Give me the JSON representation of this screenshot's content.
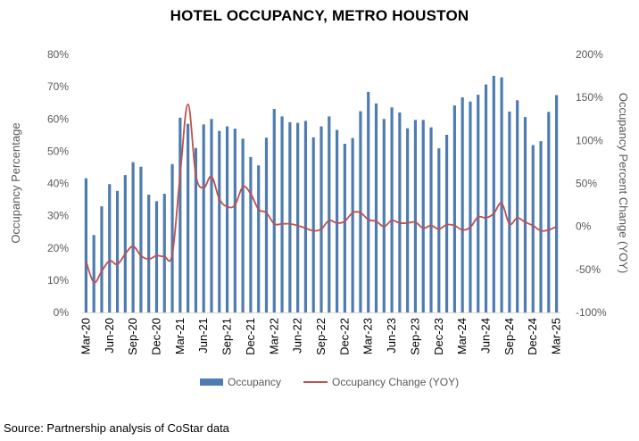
{
  "title": "HOTEL OCCUPANCY, METRO HOUSTON",
  "source": "Source: Partnership analysis of CoStar data",
  "colors": {
    "bar": "#4F7CB0",
    "line": "#C0504D",
    "grid": "#d9d9d9"
  },
  "chart_data": {
    "type": "bar+line",
    "title": "HOTEL OCCUPANCY, METRO HOUSTON",
    "ylabel": "Occupancy Percentage",
    "y2label": "Occupancy  Percent Change (YOY)",
    "ylim": [
      0,
      80
    ],
    "y2lim": [
      -100,
      200
    ],
    "yticks": [
      "0%",
      "10%",
      "20%",
      "30%",
      "40%",
      "50%",
      "60%",
      "70%",
      "80%"
    ],
    "y2ticks": [
      "-100%",
      "-50%",
      "0%",
      "50%",
      "100%",
      "150%",
      "200%"
    ],
    "xtick_labels": [
      "Mar-20",
      "Jun-20",
      "Sep-20",
      "Dec-20",
      "Mar-21",
      "Jun-21",
      "Sep-21",
      "Dec-21",
      "Mar-22",
      "Jun-22",
      "Sep-22",
      "Dec-22",
      "Mar-23",
      "Jun-23",
      "Sep-23",
      "Dec-23",
      "Mar-24",
      "Jun-24",
      "Sep-24",
      "Dec-24",
      "Mar-25"
    ],
    "legend": [
      "Occupancy",
      "Occupancy Change (YOY)"
    ],
    "legend_position": "bottom",
    "grid": false,
    "x": [
      "Mar-20",
      "Apr-20",
      "May-20",
      "Jun-20",
      "Jul-20",
      "Aug-20",
      "Sep-20",
      "Oct-20",
      "Nov-20",
      "Dec-20",
      "Jan-21",
      "Feb-21",
      "Mar-21",
      "Apr-21",
      "May-21",
      "Jun-21",
      "Jul-21",
      "Aug-21",
      "Sep-21",
      "Oct-21",
      "Nov-21",
      "Dec-21",
      "Jan-22",
      "Feb-22",
      "Mar-22",
      "Apr-22",
      "May-22",
      "Jun-22",
      "Jul-22",
      "Aug-22",
      "Sep-22",
      "Oct-22",
      "Nov-22",
      "Dec-22",
      "Jan-23",
      "Feb-23",
      "Mar-23",
      "Apr-23",
      "May-23",
      "Jun-23",
      "Jul-23",
      "Aug-23",
      "Sep-23",
      "Oct-23",
      "Nov-23",
      "Dec-23",
      "Jan-24",
      "Feb-24",
      "Mar-24",
      "Apr-24",
      "May-24",
      "Jun-24",
      "Jul-24",
      "Aug-24",
      "Sep-24",
      "Oct-24",
      "Nov-24",
      "Dec-24",
      "Jan-25",
      "Feb-25",
      "Mar-25"
    ],
    "series": [
      {
        "name": "Occupancy",
        "type": "bar",
        "axis": "left",
        "values": [
          41.6,
          24.0,
          32.9,
          39.8,
          37.7,
          42.6,
          46.6,
          45.2,
          36.5,
          34.5,
          36.8,
          46.0,
          60.4,
          58.5,
          51.0,
          58.3,
          60.0,
          56.3,
          57.7,
          57.0,
          53.9,
          48.2,
          45.6,
          54.2,
          63.1,
          60.8,
          59.0,
          58.8,
          59.4,
          54.3,
          57.7,
          60.8,
          56.6,
          52.3,
          54.1,
          62.4,
          68.4,
          64.8,
          60.0,
          63.6,
          62.0,
          57.1,
          59.7,
          59.7,
          57.4,
          50.9,
          55.1,
          64.2,
          66.7,
          65.4,
          67.5,
          70.7,
          73.4,
          72.9,
          62.3,
          65.8,
          60.6,
          51.9,
          53.1,
          62.2,
          67.4
        ]
      },
      {
        "name": "Occupancy Change (YOY)",
        "type": "line",
        "axis": "right",
        "values": [
          -40,
          -65,
          -52,
          -40,
          -44,
          -32,
          -23,
          -34,
          -38,
          -34,
          -35,
          -32,
          60,
          142,
          60,
          45,
          58,
          32,
          23,
          25,
          46,
          38,
          20,
          16,
          3,
          3,
          3,
          1,
          -2,
          -5,
          -3,
          7,
          4,
          6,
          16,
          16,
          8,
          6,
          0,
          7,
          4,
          4,
          5,
          -2,
          1,
          -3,
          2,
          1,
          -4,
          -1,
          11,
          10,
          15,
          27,
          3,
          10,
          5,
          1,
          -5,
          -4,
          0
        ]
      }
    ]
  }
}
